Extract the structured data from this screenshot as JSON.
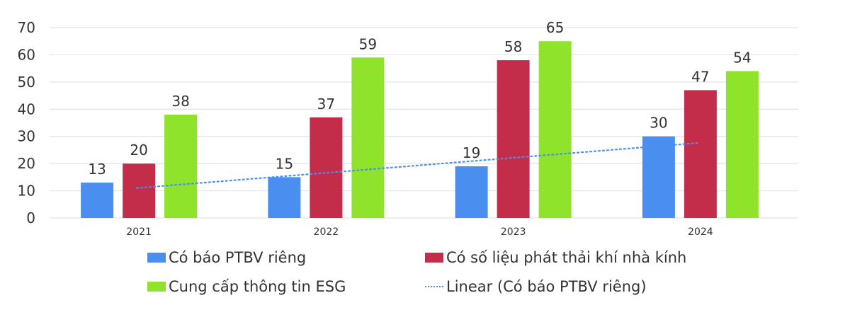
{
  "chart_data": {
    "type": "bar",
    "title": "",
    "xlabel": "",
    "ylabel": "",
    "categories": [
      "2021",
      "2022",
      "2023",
      "2024"
    ],
    "ylim": [
      0,
      70
    ],
    "yticks": [
      0,
      10,
      20,
      30,
      40,
      50,
      60,
      70
    ],
    "grid": true,
    "legend_position": "bottom",
    "series": [
      {
        "name": "Có báo PTBV riêng",
        "color": "#4a8ff0",
        "values": [
          13,
          15,
          19,
          30
        ]
      },
      {
        "name": "Có số liệu phát thải khí nhà kính",
        "color": "#c42d4a",
        "values": [
          20,
          37,
          58,
          47
        ]
      },
      {
        "name": "Cung cấp thông tin ESG",
        "color": "#8fe32a",
        "values": [
          38,
          59,
          65,
          54
        ]
      }
    ],
    "trendline": {
      "name": "Linear (Có báo PTBV riêng)",
      "type": "linear",
      "of_series": "Có báo PTBV riêng",
      "color": "#4a8ff0",
      "start_value": 11,
      "end_value": 27.6
    }
  }
}
